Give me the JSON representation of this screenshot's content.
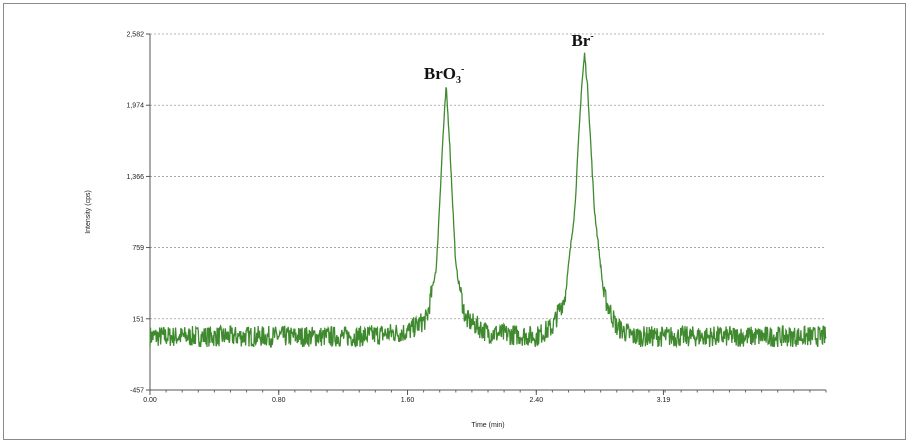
{
  "chart_data": {
    "type": "line",
    "xlabel": "Time (min)",
    "ylabel": "Intensity (cps)",
    "xlim": [
      0.0,
      4.2
    ],
    "ylim": [
      -457,
      2582
    ],
    "x_ticks": [
      "0.00",
      "0.80",
      "1.60",
      "2.40",
      "3.19"
    ],
    "x_tick_values": [
      0.0,
      0.8,
      1.6,
      2.4,
      3.19
    ],
    "y_ticks": [
      "-457",
      "151",
      "759",
      "1,366",
      "1,974",
      "2,582"
    ],
    "y_tick_values": [
      -457,
      151,
      759,
      1366,
      1974,
      2582
    ],
    "grid": "horizontal dotted",
    "line_color": "#3f8a2f",
    "baseline": 0,
    "noise_amplitude": 90,
    "peaks": [
      {
        "label_main": "BrO",
        "label_sub": "3",
        "label_sup": "-",
        "x": 1.84,
        "height": 2130
      },
      {
        "label_main": "Br",
        "label_sub": "",
        "label_sup": "-",
        "x": 2.7,
        "height": 2410
      }
    ],
    "series": [
      {
        "values": [
          [
            0.0,
            0
          ],
          [
            1.3,
            0
          ],
          [
            1.6,
            40
          ],
          [
            1.72,
            150
          ],
          [
            1.78,
            600
          ],
          [
            1.82,
            1700
          ],
          [
            1.84,
            2130
          ],
          [
            1.86,
            1700
          ],
          [
            1.9,
            600
          ],
          [
            1.96,
            150
          ],
          [
            2.1,
            30
          ],
          [
            2.4,
            0
          ],
          [
            2.5,
            80
          ],
          [
            2.58,
            350
          ],
          [
            2.64,
            1100
          ],
          [
            2.68,
            2100
          ],
          [
            2.7,
            2410
          ],
          [
            2.72,
            2100
          ],
          [
            2.76,
            1100
          ],
          [
            2.82,
            350
          ],
          [
            2.9,
            80
          ],
          [
            3.0,
            0
          ],
          [
            4.2,
            0
          ]
        ]
      }
    ]
  }
}
